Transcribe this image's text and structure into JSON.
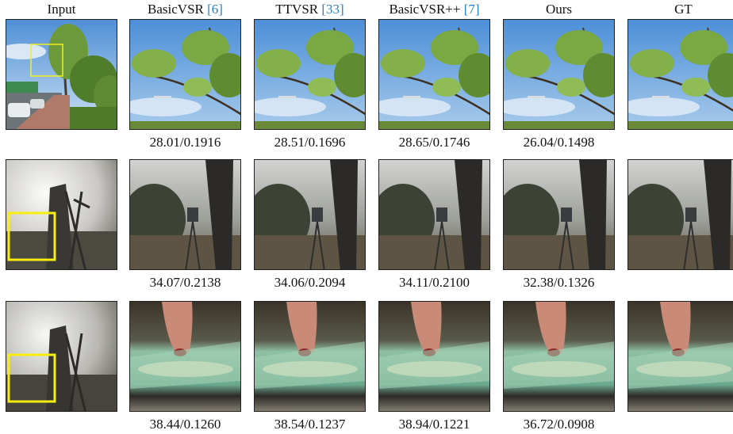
{
  "columns": [
    {
      "title": "Input"
    },
    {
      "title": "BasicVSR",
      "ref": "[6]"
    },
    {
      "title": "TTVSR",
      "ref": "[33]"
    },
    {
      "title": "BasicVSR++",
      "ref": "[7]"
    },
    {
      "title": "Ours"
    },
    {
      "title": "GT"
    }
  ],
  "rows": [
    {
      "metrics": [
        "28.01/0.1916",
        "28.51/0.1696",
        "28.65/0.1746",
        "26.04/0.1498"
      ]
    },
    {
      "metrics": [
        "34.07/0.2138",
        "34.06/0.2094",
        "34.11/0.2100",
        "32.38/0.1326"
      ]
    },
    {
      "metrics": [
        "38.44/0.1260",
        "38.54/0.1237",
        "38.94/0.1221",
        "36.72/0.0908"
      ]
    }
  ]
}
